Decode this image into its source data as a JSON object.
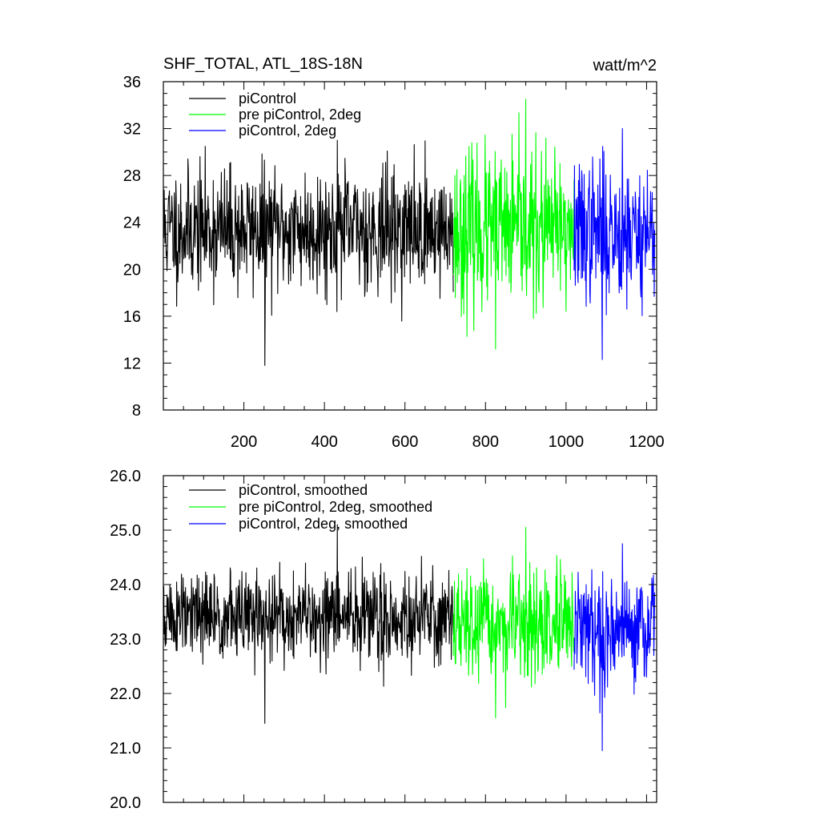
{
  "chart_data": [
    {
      "type": "line",
      "title": "SHF_TOTAL, ATL_18S-18N",
      "units": "watt/m^2",
      "xlim": [
        0,
        1225
      ],
      "ylim": [
        8,
        36
      ],
      "xticks": [
        200,
        400,
        600,
        800,
        1000,
        1200
      ],
      "xtick_labels": [
        "200",
        "400",
        "600",
        "800",
        "1000",
        "1200"
      ],
      "yticks": [
        8,
        12,
        16,
        20,
        24,
        28,
        32,
        36
      ],
      "ytick_labels": [
        "8",
        "12",
        "16",
        "20",
        "24",
        "28",
        "32",
        "36"
      ],
      "legend_position": "top-left",
      "series": [
        {
          "name": "piControl",
          "color": "#000000",
          "x_start": 1,
          "x_end": 720,
          "mean": 23.4,
          "min": 11.8,
          "max": 31.0,
          "spread": 2.6,
          "seed": 11
        },
        {
          "name": "pre piControl, 2deg",
          "color": "#00ff00",
          "x_start": 720,
          "x_end": 1020,
          "mean": 23.2,
          "min": 13.2,
          "max": 34.5,
          "spread": 3.3,
          "seed": 23
        },
        {
          "name": "piControl, 2deg",
          "color": "#0000ff",
          "x_start": 1020,
          "x_end": 1220,
          "mean": 23.2,
          "min": 12.3,
          "max": 32.0,
          "spread": 3.0,
          "seed": 37
        }
      ]
    },
    {
      "type": "line",
      "title": "",
      "xlim": [
        0,
        1225
      ],
      "ylim": [
        20.0,
        26.0
      ],
      "xticks": [
        200,
        400,
        600,
        800,
        1000,
        1200
      ],
      "yticks": [
        20.0,
        21.0,
        22.0,
        23.0,
        24.0,
        25.0,
        26.0
      ],
      "ytick_labels": [
        "20.0",
        "21.0",
        "22.0",
        "23.0",
        "24.0",
        "25.0",
        "26.0"
      ],
      "legend_position": "top-left",
      "series": [
        {
          "name": "piControl, smoothed",
          "color": "#000000",
          "x_start": 1,
          "x_end": 720,
          "mean": 23.4,
          "min": 21.45,
          "max": 25.1,
          "spread": 0.42,
          "seed": 51
        },
        {
          "name": "pre piControl, 2deg, smoothed",
          "color": "#00ff00",
          "x_start": 720,
          "x_end": 1020,
          "mean": 23.2,
          "min": 21.55,
          "max": 25.05,
          "spread": 0.5,
          "seed": 67
        },
        {
          "name": "piControl, 2deg, smoothed",
          "color": "#0000ff",
          "x_start": 1020,
          "x_end": 1220,
          "mean": 23.2,
          "min": 20.95,
          "max": 24.75,
          "spread": 0.5,
          "seed": 79
        }
      ]
    }
  ]
}
